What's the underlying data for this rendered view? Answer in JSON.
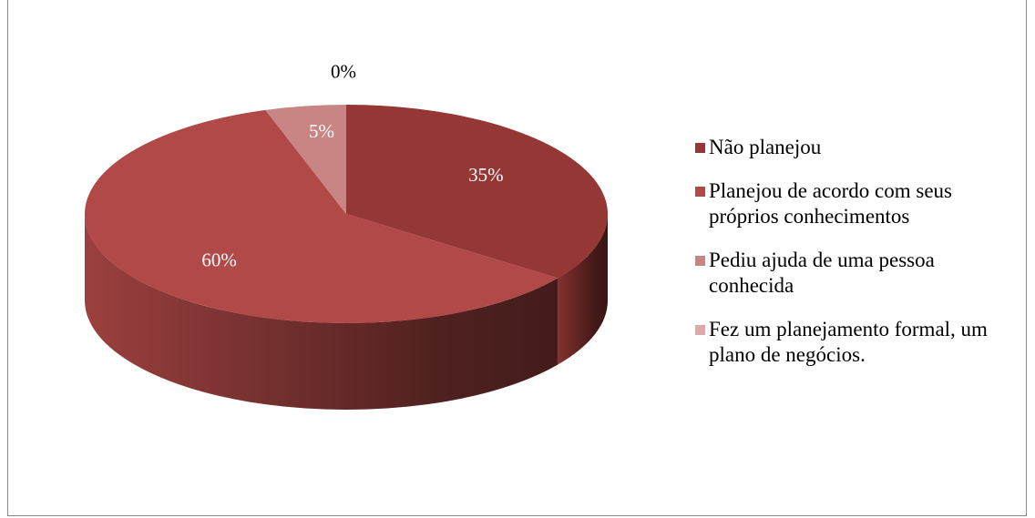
{
  "chart_data": {
    "type": "pie",
    "categories": [
      "Não planejou",
      "Planejou de acordo com seus próprios conhecimentos",
      "Pediu ajuda de uma pessoa conhecida",
      "Fez um planejamento formal, um plano de negócios."
    ],
    "values": [
      35,
      60,
      5,
      0
    ],
    "value_labels": [
      "35%",
      "60%",
      "5%",
      "0%"
    ],
    "colors": [
      "#953735",
      "#b04947",
      "#c98584",
      "#deaaa9"
    ],
    "legend": "right"
  }
}
